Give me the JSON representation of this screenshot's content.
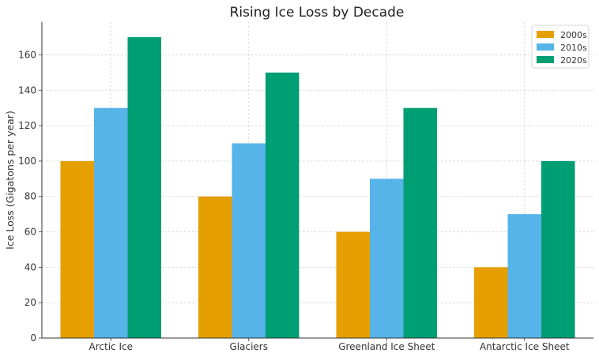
{
  "chart_data": {
    "type": "bar",
    "title": "Rising Ice Loss by Decade",
    "xlabel": "",
    "ylabel": "Ice Loss (Gigatons per year)",
    "categories": [
      "Arctic Ice",
      "Glaciers",
      "Greenland Ice Sheet",
      "Antarctic Ice Sheet"
    ],
    "series": [
      {
        "name": "2000s",
        "values": [
          100,
          80,
          60,
          40
        ],
        "color": "#E69F00"
      },
      {
        "name": "2010s",
        "values": [
          130,
          110,
          90,
          70
        ],
        "color": "#56B4E9"
      },
      {
        "name": "2020s",
        "values": [
          170,
          150,
          130,
          100
        ],
        "color": "#009E73"
      }
    ],
    "ylim": [
      0,
      178.5
    ],
    "yticks": [
      0,
      20,
      40,
      60,
      80,
      100,
      120,
      140,
      160
    ],
    "grid": true,
    "legend_position": "top-right"
  }
}
